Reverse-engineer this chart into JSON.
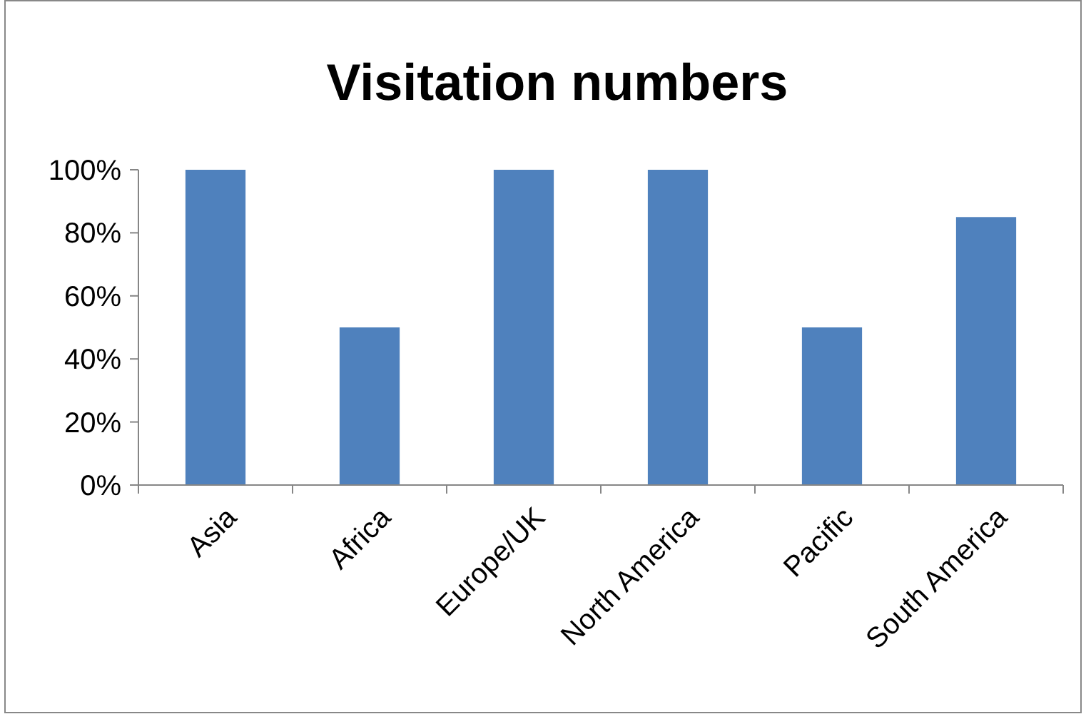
{
  "chart_data": {
    "type": "bar",
    "title": "Visitation numbers",
    "categories": [
      "Asia",
      "Africa",
      "Europe/UK",
      "North America",
      "Pacific",
      "South America"
    ],
    "values": [
      100,
      50,
      100,
      100,
      50,
      85
    ],
    "color": "#4f81bd",
    "ylim": [
      0,
      100
    ],
    "yticks": [
      {
        "value": 0,
        "label": "0%"
      },
      {
        "value": 20,
        "label": "20%"
      },
      {
        "value": 40,
        "label": "40%"
      },
      {
        "value": 60,
        "label": "60%"
      },
      {
        "value": 80,
        "label": "80%"
      },
      {
        "value": 100,
        "label": "100%"
      }
    ],
    "grid": false
  }
}
